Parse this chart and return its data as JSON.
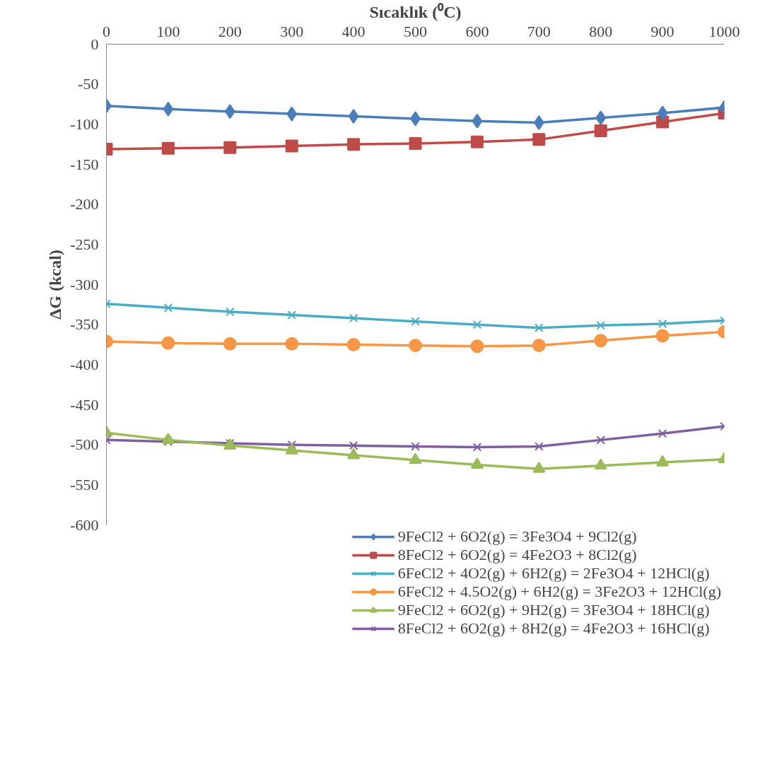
{
  "chart_data": {
    "type": "line",
    "xlabel": "Sıcaklık (⁰C)",
    "ylabel": "ΔG (kcal)",
    "x": [
      0,
      100,
      200,
      300,
      400,
      500,
      600,
      700,
      800,
      900,
      1000
    ],
    "xlim": [
      0,
      1000
    ],
    "xticks": [
      0,
      100,
      200,
      300,
      400,
      500,
      600,
      700,
      800,
      900,
      1000
    ],
    "ylim": [
      -600,
      0
    ],
    "yticks": [
      0,
      -50,
      -100,
      -150,
      -200,
      -250,
      -300,
      -350,
      -400,
      -450,
      -500,
      -550,
      -600
    ],
    "legend": "bottom",
    "line_style": "solid",
    "series": [
      {
        "name": "9FeCl2 + 6O2(g) = 3Fe3O4 + 9Cl2(g)",
        "color": "#4a7ebb",
        "marker": "diamond",
        "values": [
          -77,
          -81,
          -84,
          -87,
          -90,
          -93,
          -96,
          -98,
          -92,
          -86,
          -79
        ]
      },
      {
        "name": "8FeCl2 + 6O2(g) = 4Fe2O3 + 8Cl2(g)",
        "color": "#be4b48",
        "marker": "square",
        "values": [
          -131,
          -130,
          -129,
          -127,
          -125,
          -124,
          -122,
          -119,
          -108,
          -97,
          -86
        ]
      },
      {
        "name": "6FeCl2 + 4O2(g) + 6H2(g) = 2Fe3O4 + 12HCl(g)",
        "color": "#4bacc6",
        "marker": "cross",
        "values": [
          -324,
          -329,
          -334,
          -338,
          -342,
          -346,
          -350,
          -354,
          -351,
          -349,
          -345
        ]
      },
      {
        "name": "6FeCl2 + 4.5O2(g) + 6H2(g) = 3Fe2O3 + 12HCl(g)",
        "color": "#f79646",
        "marker": "circle",
        "values": [
          -371,
          -373,
          -374,
          -374,
          -375,
          -376,
          -377,
          -376,
          -370,
          -364,
          -359
        ]
      },
      {
        "name": "9FeCl2 + 6O2(g) + 9H2(g) = 3Fe3O4 + 18HCl(g)",
        "color": "#9bbb59",
        "marker": "triangle",
        "values": [
          -485,
          -494,
          -501,
          -507,
          -513,
          -519,
          -525,
          -530,
          -526,
          -522,
          -518
        ]
      },
      {
        "name": "8FeCl2 + 6O2(g) + 8H2(g) = 4Fe2O3 + 16HCl(g)",
        "color": "#7f5f9f",
        "marker": "cross",
        "values": [
          -494,
          -496,
          -498,
          -500,
          -501,
          -502,
          -503,
          -502,
          -494,
          -486,
          -477
        ]
      }
    ]
  }
}
